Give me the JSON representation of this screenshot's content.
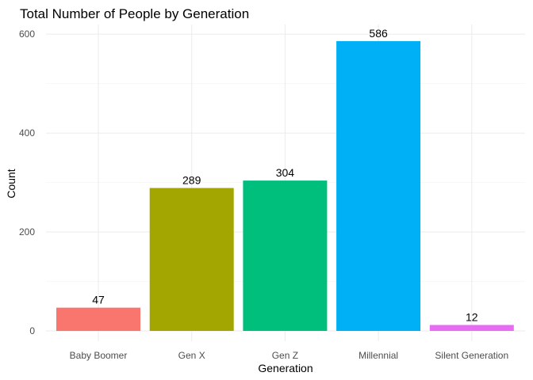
{
  "chart_data": {
    "type": "bar",
    "title": "Total Number of People by Generation",
    "xlabel": "Generation",
    "ylabel": "Count",
    "categories": [
      "Baby Boomer",
      "Gen X",
      "Gen Z",
      "Millennial",
      "Silent Generation"
    ],
    "values": [
      47,
      289,
      304,
      586,
      12
    ],
    "colors": [
      "#F8766D",
      "#A3A500",
      "#00BF7D",
      "#00B0F6",
      "#E76BF3"
    ],
    "ylim": [
      0,
      615
    ],
    "yticks": [
      0,
      200,
      400,
      600
    ],
    "yticks_minor": [
      100,
      300,
      500
    ],
    "grid": true,
    "legend": "none"
  }
}
